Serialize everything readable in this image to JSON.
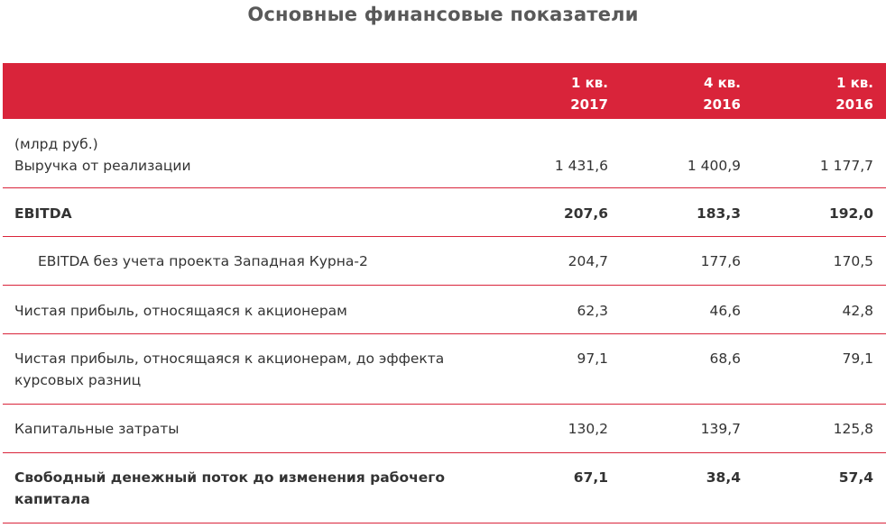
{
  "title": "Основные финансовые показатели",
  "columns": [
    {
      "line1": "1 кв.",
      "line2": "2017"
    },
    {
      "line1": "4 кв.",
      "line2": "2016"
    },
    {
      "line1": "1 кв.",
      "line2": "2016"
    }
  ],
  "rows": [
    {
      "unit": "(млрд руб.)",
      "label": "Выручка от реализации",
      "values": [
        "1 431,6",
        "1 400,9",
        "1 177,7"
      ]
    },
    {
      "label": "EBITDA",
      "values": [
        "207,6",
        "183,3",
        "192,0"
      ]
    },
    {
      "label": "EBITDA без учета проекта Западная Курна-2",
      "values": [
        "204,7",
        "177,6",
        "170,5"
      ]
    },
    {
      "label": "Чистая прибыль, относящаяся к акционерам",
      "values": [
        "62,3",
        "46,6",
        "42,8"
      ]
    },
    {
      "label_line1": "Чистая прибыль, относящаяся к акционерам, до эффекта",
      "label_line2": "курсовых разниц",
      "values": [
        "97,1",
        "68,6",
        "79,1"
      ]
    },
    {
      "label": "Капитальные затраты",
      "values": [
        "130,2",
        "139,7",
        "125,8"
      ]
    },
    {
      "label_line1": "Свободный денежный поток до изменения рабочего",
      "label_line2": "капитала",
      "values": [
        "67,1",
        "38,4",
        "57,4"
      ]
    }
  ],
  "colors": {
    "header_background": "#d9243a",
    "header_text": "#ffffff",
    "divider": "#d9243a"
  }
}
